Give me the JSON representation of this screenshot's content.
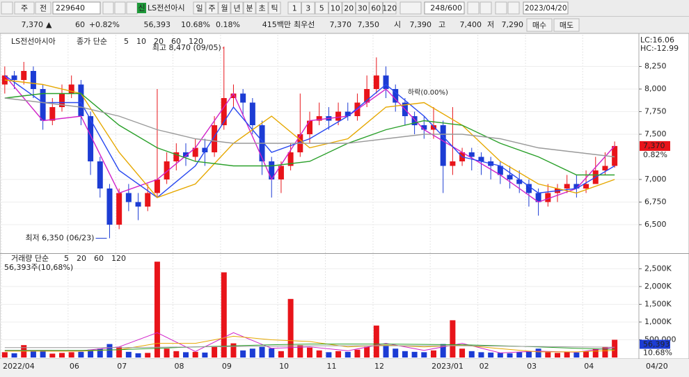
{
  "toolbar": {
    "left_buttons": [
      "주",
      "전"
    ],
    "code": "229640",
    "name_tag": "신",
    "name": "LS전선아시",
    "periods": [
      "일",
      "주",
      "월",
      "년",
      "분",
      "초",
      "틱"
    ],
    "intervals": [
      "1",
      "3",
      "5",
      "10",
      "20",
      "30",
      "60",
      "120"
    ],
    "count": "248/600",
    "date": "2023/04/20"
  },
  "quote": {
    "price": "7,370",
    "arrow": "▲",
    "change": "60",
    "change_pct": "+0.82%",
    "volume": "56,393",
    "volume_pct": "10.68%",
    "turnover": "0.18%",
    "amount": "415백만",
    "best_label": "최우선",
    "ask": "7,370",
    "bid": "7,350",
    "open_label": "시",
    "open": "7,390",
    "high_label": "고",
    "high": "7,400",
    "low_label": "저",
    "low": "7,290",
    "buy": "매수",
    "sell": "매도"
  },
  "chart_data": [
    {
      "type": "candlestick",
      "title": "LS전선아시아",
      "legend_label": "종가 단순",
      "lc": "LC:16.06",
      "hc": "HC:-12.99",
      "last_label": "7,370",
      "last_change": "0.82%",
      "up_color": "#e8141a",
      "down_color": "#1c3cd4",
      "annotations": [
        "최고 8,470 (09/05)",
        "최저 6,350 (06/23)",
        "하락(0.00%)"
      ],
      "categories": [
        "2022/04",
        null,
        null,
        null,
        null,
        null,
        null,
        "06",
        null,
        null,
        null,
        null,
        "07",
        null,
        null,
        null,
        null,
        null,
        "08",
        null,
        null,
        null,
        null,
        "09",
        null,
        null,
        null,
        null,
        null,
        "10",
        null,
        null,
        null,
        null,
        "11",
        null,
        null,
        null,
        null,
        "12",
        null,
        null,
        null,
        null,
        null,
        "2023/01",
        null,
        null,
        null,
        null,
        "02",
        null,
        null,
        null,
        null,
        "03",
        null,
        null,
        null,
        null,
        null,
        "04",
        null,
        null,
        null
      ],
      "open": [
        8050,
        8150,
        8100,
        8200,
        8000,
        7650,
        7800,
        7950,
        8050,
        7700,
        7200,
        6900,
        6500,
        6850,
        6750,
        6700,
        6850,
        7000,
        7200,
        7300,
        7250,
        7350,
        7300,
        7600,
        7900,
        7950,
        7850,
        7600,
        7200,
        7000,
        7150,
        7300,
        7500,
        7650,
        7700,
        7650,
        7750,
        7700,
        7850,
        8000,
        8150,
        8000,
        7850,
        7700,
        7600,
        7550,
        7600,
        7150,
        7200,
        7300,
        7250,
        7200,
        7150,
        7050,
        7000,
        6950,
        6850,
        6750,
        6850,
        6900,
        6950,
        6900,
        6950,
        7100,
        7150
      ],
      "high": [
        8250,
        8200,
        8300,
        8250,
        8050,
        7900,
        8050,
        8150,
        8100,
        7750,
        7250,
        6950,
        6900,
        6950,
        6850,
        6950,
        8000,
        7300,
        7400,
        7400,
        7450,
        7450,
        7700,
        8470,
        8050,
        8000,
        7900,
        7650,
        7250,
        7200,
        7400,
        7950,
        7750,
        7850,
        7800,
        7850,
        7850,
        7950,
        8150,
        8350,
        8250,
        8050,
        7900,
        7750,
        7700,
        7800,
        7650,
        7800,
        7350,
        7350,
        7300,
        7250,
        7200,
        7150,
        7100,
        7000,
        6900,
        6950,
        6950,
        7050,
        7050,
        7100,
        7250,
        7300,
        7420
      ],
      "low": [
        7950,
        8000,
        8050,
        7900,
        7550,
        7600,
        7750,
        7900,
        7600,
        7050,
        6800,
        6350,
        6450,
        6650,
        6550,
        6650,
        6800,
        6950,
        7100,
        7150,
        7200,
        7150,
        7250,
        7550,
        7800,
        7700,
        7500,
        7050,
        6800,
        6850,
        7100,
        7250,
        7400,
        7600,
        7550,
        7600,
        7650,
        7650,
        7800,
        7950,
        7900,
        7750,
        7600,
        7500,
        7450,
        7450,
        6850,
        7050,
        7150,
        7100,
        7050,
        7000,
        6950,
        6900,
        6850,
        6700,
        6600,
        6700,
        6750,
        6850,
        6800,
        6850,
        6950,
        7050,
        7130
      ],
      "close": [
        8150,
        8100,
        8200,
        8000,
        7650,
        7800,
        7950,
        8050,
        7700,
        7200,
        6900,
        6500,
        6850,
        6750,
        6700,
        6850,
        7000,
        7200,
        7300,
        7250,
        7350,
        7300,
        7600,
        7900,
        7950,
        7850,
        7600,
        7200,
        7000,
        7150,
        7300,
        7500,
        7650,
        7700,
        7650,
        7750,
        7700,
        7850,
        8000,
        8150,
        8000,
        7850,
        7700,
        7600,
        7550,
        7600,
        7150,
        7200,
        7300,
        7250,
        7200,
        7150,
        7050,
        7000,
        6950,
        6850,
        6750,
        6850,
        6900,
        6950,
        6900,
        6950,
        7100,
        7150,
        7370
      ],
      "series": [
        {
          "name": "5",
          "color": "#d020c8",
          "x": [
            0,
            4,
            8,
            12,
            16,
            20,
            24,
            28,
            32,
            36,
            40,
            44,
            48,
            52,
            56,
            60,
            64
          ],
          "values": [
            8150,
            7650,
            7700,
            6850,
            7000,
            7350,
            7950,
            7000,
            7650,
            7700,
            8000,
            7550,
            7300,
            7050,
            6750,
            6900,
            7370
          ]
        },
        {
          "name": "10",
          "color": "#2848f0",
          "x": [
            0,
            4,
            8,
            12,
            16,
            20,
            24,
            28,
            32,
            36,
            40,
            44,
            48,
            52,
            56,
            60,
            64
          ],
          "values": [
            8150,
            7850,
            7850,
            7100,
            6800,
            7150,
            7800,
            7300,
            7450,
            7700,
            8050,
            7700,
            7250,
            7150,
            6850,
            6900,
            7150
          ]
        },
        {
          "name": "20",
          "color": "#e6a800",
          "x": [
            0,
            4,
            8,
            12,
            16,
            20,
            24,
            28,
            32,
            36,
            40,
            44,
            48,
            52,
            56,
            60,
            64
          ],
          "values": [
            8100,
            8050,
            7950,
            7300,
            6800,
            6950,
            7400,
            7700,
            7350,
            7450,
            7800,
            7850,
            7600,
            7200,
            6950,
            6850,
            7000
          ]
        },
        {
          "name": "60",
          "color": "#2aa02a",
          "x": [
            0,
            4,
            8,
            12,
            16,
            20,
            24,
            28,
            32,
            36,
            40,
            44,
            48,
            52,
            56,
            60,
            64
          ],
          "values": [
            7900,
            7950,
            7950,
            7600,
            7350,
            7200,
            7150,
            7150,
            7200,
            7400,
            7550,
            7650,
            7600,
            7400,
            7250,
            7050,
            7050
          ]
        },
        {
          "name": "120",
          "color": "#9a9a9a",
          "x": [
            0,
            4,
            8,
            12,
            16,
            20,
            24,
            28,
            32,
            36,
            40,
            44,
            48,
            52,
            56,
            60,
            64
          ],
          "values": [
            7900,
            7850,
            7800,
            7700,
            7550,
            7450,
            7400,
            7400,
            7400,
            7400,
            7450,
            7500,
            7500,
            7450,
            7350,
            7300,
            7250
          ]
        }
      ],
      "ylim": [
        6200,
        8600
      ],
      "yticks": [
        {
          "value": 6500,
          "label": "6,500"
        },
        {
          "value": 6750,
          "label": "6,750"
        },
        {
          "value": 7000,
          "label": "7,000"
        },
        {
          "value": 7500,
          "label": "7,500"
        },
        {
          "value": 7750,
          "label": "7,750"
        },
        {
          "value": 8000,
          "label": "8,000"
        },
        {
          "value": 8250,
          "label": "8,250"
        }
      ],
      "grid": true
    },
    {
      "type": "bar",
      "title": "거래량 단순",
      "summary": "56,393주(10,68%)",
      "last_label": "56,393",
      "last_pct": "10.68%",
      "x_end_label": "04/20",
      "values": [
        150000,
        120000,
        350000,
        180000,
        200000,
        110000,
        130000,
        150000,
        160000,
        220000,
        250000,
        380000,
        300000,
        160000,
        120000,
        130000,
        2700000,
        250000,
        180000,
        150000,
        160000,
        140000,
        300000,
        2400000,
        400000,
        200000,
        250000,
        300000,
        260000,
        180000,
        1650000,
        350000,
        280000,
        200000,
        150000,
        180000,
        160000,
        220000,
        300000,
        900000,
        350000,
        250000,
        180000,
        160000,
        150000,
        200000,
        380000,
        1050000,
        250000,
        180000,
        150000,
        140000,
        130000,
        120000,
        150000,
        180000,
        250000,
        150000,
        130000,
        160000,
        140000,
        180000,
        250000,
        300000,
        500000
      ],
      "series": [
        {
          "name": "5",
          "color": "#d020c8",
          "x": [
            0,
            4,
            8,
            12,
            16,
            20,
            24,
            28,
            32,
            36,
            40,
            44,
            48,
            52,
            56,
            60,
            64
          ],
          "values": [
            200000,
            200000,
            190000,
            300000,
            700000,
            170000,
            700000,
            260000,
            300000,
            190000,
            400000,
            200000,
            400000,
            130000,
            180000,
            150000,
            290000
          ]
        },
        {
          "name": "20",
          "color": "#e6a800",
          "x": [
            0,
            4,
            8,
            12,
            16,
            20,
            24,
            28,
            32,
            36,
            40,
            44,
            48,
            52,
            56,
            60,
            64
          ],
          "values": [
            180000,
            180000,
            180000,
            220000,
            400000,
            400000,
            600000,
            500000,
            450000,
            300000,
            350000,
            300000,
            350000,
            250000,
            160000,
            160000,
            200000
          ]
        },
        {
          "name": "60",
          "color": "#2aa02a",
          "x": [
            0,
            4,
            8,
            12,
            16,
            20,
            24,
            28,
            32,
            36,
            40,
            44,
            48,
            52,
            56,
            60,
            64
          ],
          "values": [
            200000,
            200000,
            200000,
            220000,
            260000,
            300000,
            330000,
            360000,
            380000,
            380000,
            380000,
            370000,
            360000,
            330000,
            300000,
            260000,
            230000
          ]
        },
        {
          "name": "120",
          "color": "#9a9a9a",
          "x": [
            0,
            4,
            8,
            12,
            16,
            20,
            24,
            28,
            32,
            36,
            40,
            44,
            48,
            52,
            56,
            60,
            64
          ],
          "values": [
            280000,
            280000,
            280000,
            280000,
            290000,
            300000,
            310000,
            320000,
            330000,
            330000,
            330000,
            330000,
            330000,
            320000,
            310000,
            300000,
            290000
          ]
        }
      ],
      "ylim": [
        0,
        2900000
      ],
      "yticks": [
        {
          "value": 500000,
          "label": "500,000"
        },
        {
          "value": 1000000,
          "label": "1,000K"
        },
        {
          "value": 1500000,
          "label": "1,500K"
        },
        {
          "value": 2000000,
          "label": "2,000K"
        },
        {
          "value": 2500000,
          "label": "2,500K"
        }
      ]
    }
  ]
}
